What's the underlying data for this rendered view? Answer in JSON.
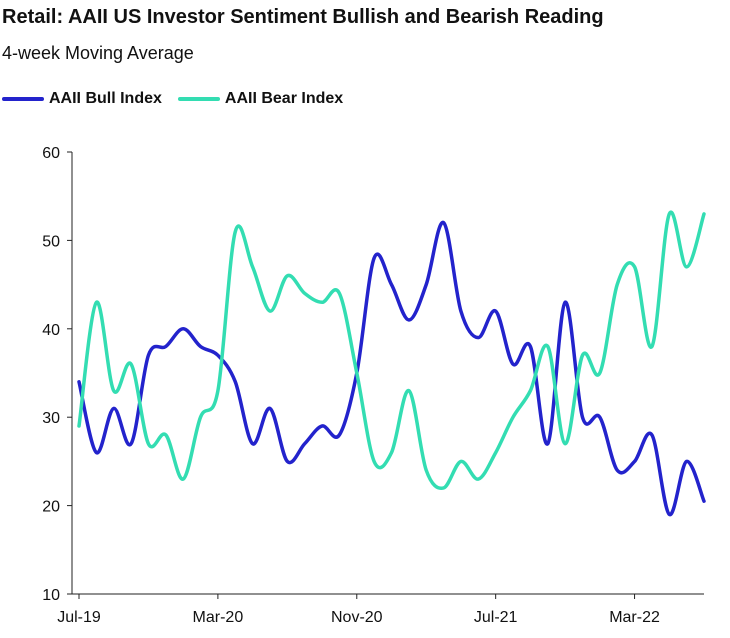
{
  "chart_data": {
    "type": "line",
    "title": "Retail: AAII US Investor Sentiment Bullish and Bearish Reading",
    "subtitle": "4-week Moving Average",
    "xlabel": "",
    "ylabel": "",
    "ylim": [
      10,
      60
    ],
    "yticks": [
      "60",
      "50",
      "40",
      "30",
      "20",
      "10"
    ],
    "xticks": [
      "Jul-19",
      "Mar-20",
      "Nov-20",
      "Jul-21",
      "Mar-22"
    ],
    "xtick_dates": [
      "2019-07",
      "2020-03",
      "2020-11",
      "2021-07",
      "2022-03"
    ],
    "xlim": [
      "2019-07",
      "2022-07"
    ],
    "grid": false,
    "legend": "top-left",
    "series": [
      {
        "name": "AAII Bull Index",
        "color": "#2323cc",
        "x": [
          "2019-07",
          "2019-08",
          "2019-09",
          "2019-10",
          "2019-11",
          "2019-12",
          "2020-01",
          "2020-02",
          "2020-03",
          "2020-04",
          "2020-05",
          "2020-06",
          "2020-07",
          "2020-08",
          "2020-09",
          "2020-10",
          "2020-11",
          "2020-12",
          "2021-01",
          "2021-02",
          "2021-03",
          "2021-04",
          "2021-05",
          "2021-06",
          "2021-07",
          "2021-08",
          "2021-09",
          "2021-10",
          "2021-11",
          "2021-12",
          "2022-01",
          "2022-02",
          "2022-03",
          "2022-04",
          "2022-05",
          "2022-06",
          "2022-07"
        ],
        "values": [
          34,
          26,
          31,
          27,
          37,
          38,
          40,
          38,
          37,
          34,
          27,
          31,
          25,
          27,
          29,
          28,
          35,
          48,
          45,
          41,
          45,
          52,
          42,
          39,
          42,
          36,
          38,
          27,
          43,
          30,
          30,
          24,
          25,
          28,
          19,
          25,
          20.5
        ]
      },
      {
        "name": "AAII Bear Index",
        "color": "#33ddb2",
        "x": [
          "2019-07",
          "2019-08",
          "2019-09",
          "2019-10",
          "2019-11",
          "2019-12",
          "2020-01",
          "2020-02",
          "2020-03",
          "2020-04",
          "2020-05",
          "2020-06",
          "2020-07",
          "2020-08",
          "2020-09",
          "2020-10",
          "2020-11",
          "2020-12",
          "2021-01",
          "2021-02",
          "2021-03",
          "2021-04",
          "2021-05",
          "2021-06",
          "2021-07",
          "2021-08",
          "2021-09",
          "2021-10",
          "2021-11",
          "2021-12",
          "2022-01",
          "2022-02",
          "2022-03",
          "2022-04",
          "2022-05",
          "2022-06",
          "2022-07"
        ],
        "values": [
          29,
          43,
          33,
          36,
          27,
          28,
          23,
          30,
          33,
          51,
          47,
          42,
          46,
          44,
          43,
          44,
          35,
          25,
          26,
          33,
          24,
          22,
          25,
          23,
          26,
          30,
          33,
          38,
          27,
          37,
          35,
          45,
          47,
          38,
          53,
          47,
          53
        ]
      }
    ]
  }
}
